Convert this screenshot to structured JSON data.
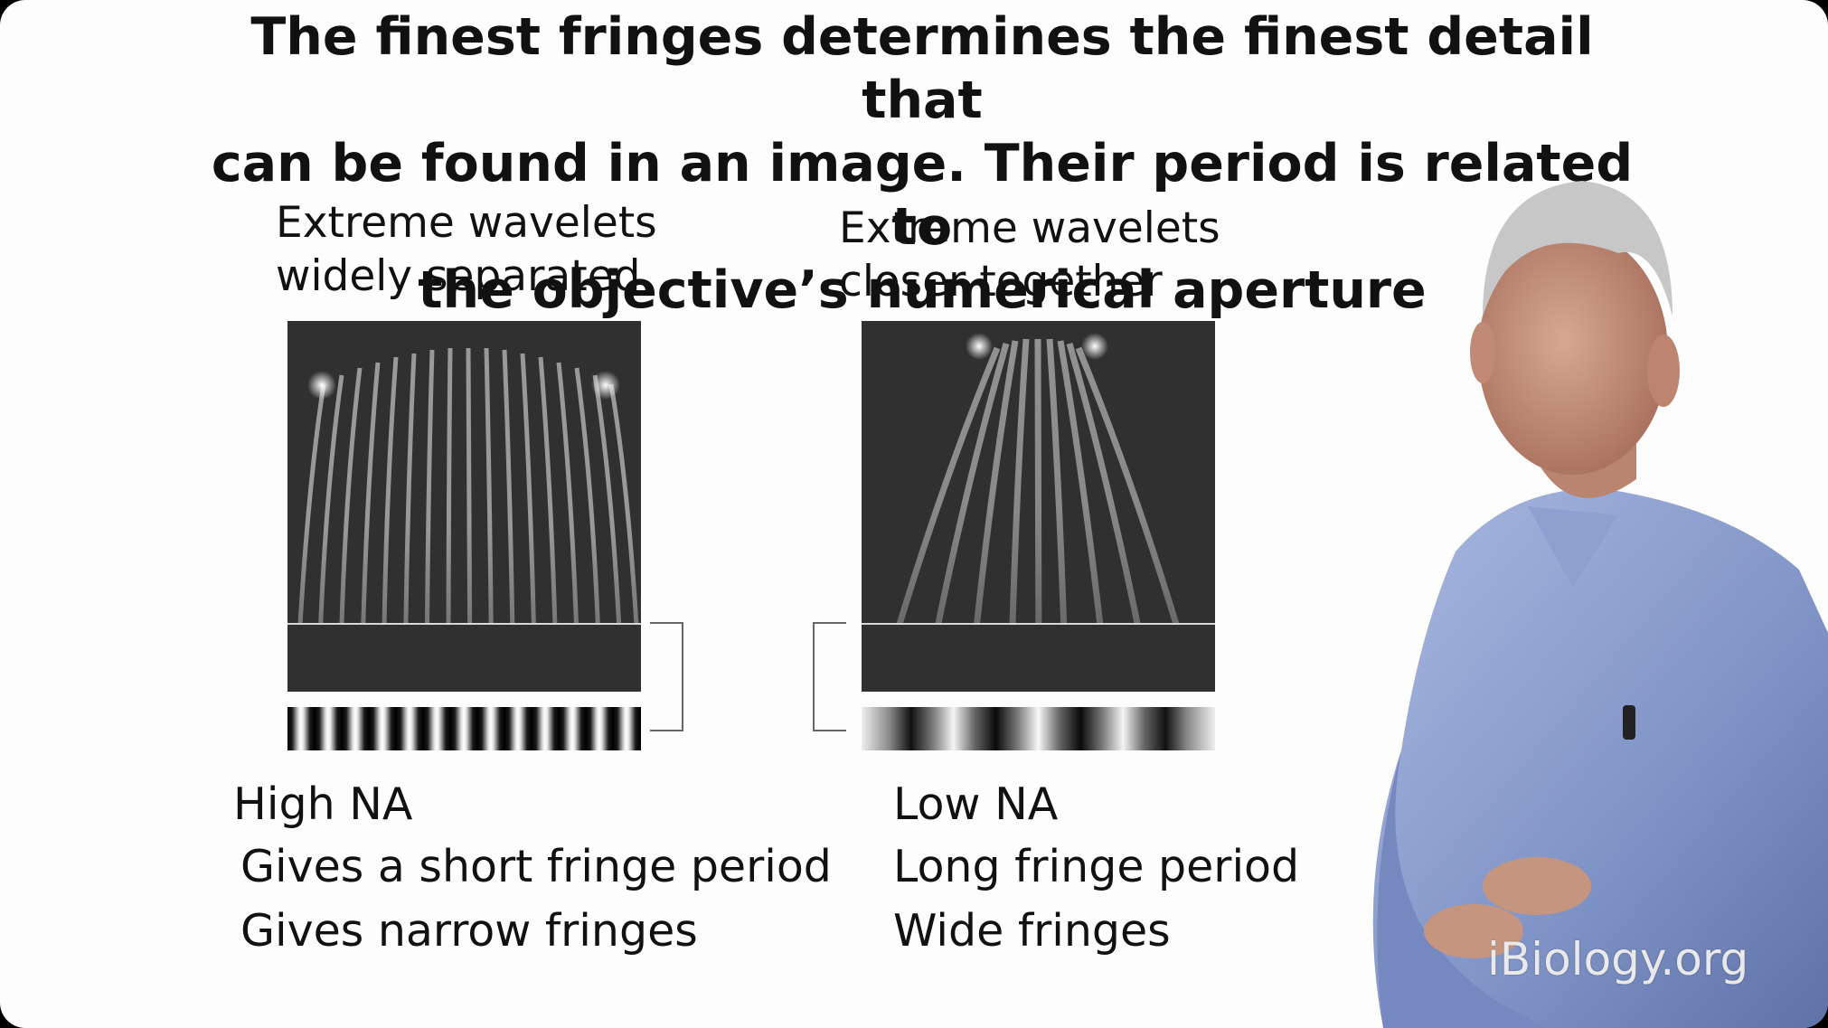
{
  "slide": {
    "title_lines": [
      "The finest fringes determines the finest detail that",
      "can be found in an image. Their period is related to",
      "the objective’s numerical aperture"
    ],
    "left": {
      "caption_lines": [
        "Extreme wavelets",
        "widely separated"
      ],
      "heading": "High NA",
      "points": [
        "Gives a short fringe period",
        "Gives narrow fringes"
      ]
    },
    "right": {
      "caption_lines": [
        "Extreme wavelets",
        "closer together"
      ],
      "heading": "Low NA",
      "points": [
        "Long fringe period",
        "Wide fringes"
      ]
    }
  },
  "watermark": "iBiology.org"
}
